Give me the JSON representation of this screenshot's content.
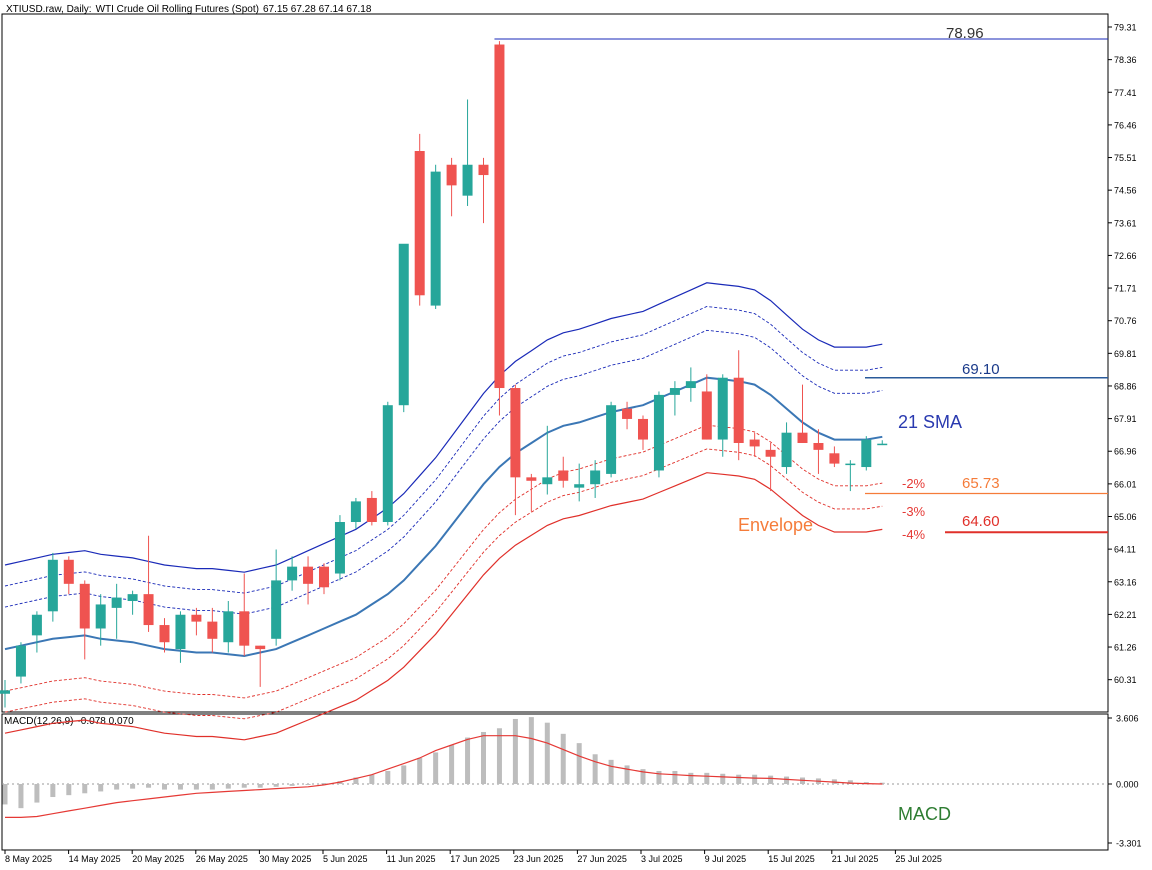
{
  "header": {
    "symbol": "XTIUSD.raw, Daily:",
    "description": "WTI Crude Oil Rolling Futures (Spot)",
    "ohlc": "67.15 67.28 67.14 67.18"
  },
  "macd_header": {
    "name": "MACD(12,26,9)",
    "values": "-0.078 0.070"
  },
  "colors": {
    "bull": "#26a69a",
    "bear": "#ef5350",
    "sma": "#3b77b5",
    "envelope_upper": "#1a2ab8",
    "envelope_lower": "#e0302a",
    "macd_hist": "#bdbdbd",
    "macd_signal": "#e53935",
    "orange": "#f57c3a",
    "green_label": "#2e7d32"
  },
  "annotations": {
    "peak_value": "78.96",
    "level_6910": "69.10",
    "sma_label": "21 SMA",
    "envelope_label": "Envelope",
    "level_6573": "65.73",
    "level_6460": "64.60",
    "pct2": "-2%",
    "pct3": "-3%",
    "pct4": "-4%",
    "macd_label": "MACD"
  },
  "chart_data": {
    "type": "candlestick",
    "price_axis_ticks": [
      "79.31",
      "78.36",
      "77.41",
      "76.46",
      "75.51",
      "74.56",
      "73.61",
      "72.66",
      "71.71",
      "70.76",
      "69.81",
      "68.86",
      "67.91",
      "66.96",
      "66.01",
      "65.06",
      "64.11",
      "63.16",
      "62.21",
      "61.26",
      "60.31"
    ],
    "macd_axis_ticks": [
      "3.606",
      "0.000",
      "-3.301"
    ],
    "date_labels": [
      "8 May 2025",
      "14 May 2025",
      "20 May 2025",
      "26 May 2025",
      "30 May 2025",
      "5 Jun 2025",
      "11 Jun 2025",
      "17 Jun 2025",
      "23 Jun 2025",
      "27 Jun 2025",
      "3 Jul 2025",
      "9 Jul 2025",
      "15 Jul 2025",
      "21 Jul 2025",
      "25 Jul 2025"
    ],
    "candles": [
      {
        "o": 59.9,
        "h": 60.3,
        "l": 59.5,
        "c": 60.0
      },
      {
        "o": 60.4,
        "h": 61.4,
        "l": 60.2,
        "c": 61.3
      },
      {
        "o": 61.6,
        "h": 62.3,
        "l": 61.1,
        "c": 62.2
      },
      {
        "o": 62.3,
        "h": 64.0,
        "l": 62.0,
        "c": 63.8
      },
      {
        "o": 63.8,
        "h": 63.9,
        "l": 62.8,
        "c": 63.1
      },
      {
        "o": 63.1,
        "h": 63.2,
        "l": 60.9,
        "c": 61.8
      },
      {
        "o": 61.8,
        "h": 62.8,
        "l": 61.3,
        "c": 62.5
      },
      {
        "o": 62.4,
        "h": 63.1,
        "l": 61.5,
        "c": 62.7
      },
      {
        "o": 62.6,
        "h": 62.9,
        "l": 62.2,
        "c": 62.8
      },
      {
        "o": 62.8,
        "h": 64.5,
        "l": 61.7,
        "c": 61.9
      },
      {
        "o": 61.9,
        "h": 62.1,
        "l": 61.1,
        "c": 61.4
      },
      {
        "o": 61.2,
        "h": 62.3,
        "l": 60.8,
        "c": 62.2
      },
      {
        "o": 62.2,
        "h": 62.4,
        "l": 61.6,
        "c": 62.0
      },
      {
        "o": 62.0,
        "h": 62.4,
        "l": 61.1,
        "c": 61.5
      },
      {
        "o": 61.4,
        "h": 62.6,
        "l": 61.1,
        "c": 62.3
      },
      {
        "o": 62.3,
        "h": 63.4,
        "l": 61.0,
        "c": 61.3
      },
      {
        "o": 61.3,
        "h": 61.3,
        "l": 60.1,
        "c": 61.2
      },
      {
        "o": 61.5,
        "h": 64.1,
        "l": 61.3,
        "c": 63.2
      },
      {
        "o": 63.2,
        "h": 63.9,
        "l": 62.9,
        "c": 63.6
      },
      {
        "o": 63.6,
        "h": 63.9,
        "l": 62.5,
        "c": 63.1
      },
      {
        "o": 63.6,
        "h": 63.7,
        "l": 62.8,
        "c": 63.0
      },
      {
        "o": 63.4,
        "h": 65.1,
        "l": 63.2,
        "c": 64.9
      },
      {
        "o": 64.9,
        "h": 65.6,
        "l": 64.7,
        "c": 65.5
      },
      {
        "o": 65.6,
        "h": 65.8,
        "l": 64.8,
        "c": 64.9
      },
      {
        "o": 64.9,
        "h": 68.4,
        "l": 64.8,
        "c": 68.3
      },
      {
        "o": 68.3,
        "h": 72.9,
        "l": 68.1,
        "c": 73.0
      },
      {
        "o": 75.7,
        "h": 76.2,
        "l": 71.2,
        "c": 71.5
      },
      {
        "o": 71.2,
        "h": 75.3,
        "l": 71.1,
        "c": 75.1
      },
      {
        "o": 75.3,
        "h": 75.5,
        "l": 73.8,
        "c": 74.7
      },
      {
        "o": 74.4,
        "h": 77.2,
        "l": 74.1,
        "c": 75.3
      },
      {
        "o": 75.3,
        "h": 75.5,
        "l": 73.6,
        "c": 75.0
      },
      {
        "o": 78.8,
        "h": 78.9,
        "l": 68.0,
        "c": 68.8
      },
      {
        "o": 68.8,
        "h": 68.9,
        "l": 65.1,
        "c": 66.2
      },
      {
        "o": 66.2,
        "h": 66.3,
        "l": 65.2,
        "c": 66.1
      },
      {
        "o": 66.0,
        "h": 67.7,
        "l": 65.7,
        "c": 66.2
      },
      {
        "o": 66.4,
        "h": 66.8,
        "l": 65.9,
        "c": 66.1
      },
      {
        "o": 65.9,
        "h": 66.6,
        "l": 65.5,
        "c": 66.0
      },
      {
        "o": 66.0,
        "h": 66.7,
        "l": 65.6,
        "c": 66.4
      },
      {
        "o": 66.3,
        "h": 68.4,
        "l": 66.2,
        "c": 68.3
      },
      {
        "o": 68.2,
        "h": 68.4,
        "l": 67.6,
        "c": 67.9
      },
      {
        "o": 67.9,
        "h": 68.0,
        "l": 67.0,
        "c": 67.3
      },
      {
        "o": 66.4,
        "h": 68.7,
        "l": 66.2,
        "c": 68.6
      },
      {
        "o": 68.6,
        "h": 69.0,
        "l": 68.0,
        "c": 68.8
      },
      {
        "o": 68.8,
        "h": 69.4,
        "l": 68.4,
        "c": 69.0
      },
      {
        "o": 68.7,
        "h": 69.2,
        "l": 67.3,
        "c": 67.3
      },
      {
        "o": 67.3,
        "h": 69.2,
        "l": 66.8,
        "c": 69.1
      },
      {
        "o": 69.1,
        "h": 69.9,
        "l": 66.7,
        "c": 67.2
      },
      {
        "o": 67.3,
        "h": 67.5,
        "l": 66.8,
        "c": 67.1
      },
      {
        "o": 67.0,
        "h": 67.2,
        "l": 65.8,
        "c": 66.8
      },
      {
        "o": 66.5,
        "h": 67.8,
        "l": 66.3,
        "c": 67.5
      },
      {
        "o": 67.5,
        "h": 68.9,
        "l": 67.2,
        "c": 67.2
      },
      {
        "o": 67.2,
        "h": 67.6,
        "l": 66.3,
        "c": 67.0
      },
      {
        "o": 66.9,
        "h": 67.1,
        "l": 66.5,
        "c": 66.6
      },
      {
        "o": 66.6,
        "h": 66.7,
        "l": 65.8,
        "c": 66.6
      },
      {
        "o": 66.5,
        "h": 67.4,
        "l": 66.4,
        "c": 67.3
      },
      {
        "o": 67.15,
        "h": 67.28,
        "l": 67.14,
        "c": 67.18
      }
    ],
    "sma21": [
      61.2,
      61.3,
      61.4,
      61.5,
      61.55,
      61.6,
      61.5,
      61.45,
      61.4,
      61.3,
      61.2,
      61.15,
      61.1,
      61.1,
      61.05,
      61.0,
      61.1,
      61.2,
      61.4,
      61.6,
      61.8,
      62.0,
      62.2,
      62.5,
      62.8,
      63.2,
      63.7,
      64.2,
      64.8,
      65.4,
      66.0,
      66.5,
      66.9,
      67.2,
      67.5,
      67.7,
      67.8,
      67.95,
      68.1,
      68.2,
      68.3,
      68.5,
      68.7,
      68.9,
      69.1,
      69.05,
      69.0,
      68.9,
      68.6,
      68.2,
      67.8,
      67.5,
      67.3,
      67.3,
      67.3,
      67.38
    ]
  }
}
